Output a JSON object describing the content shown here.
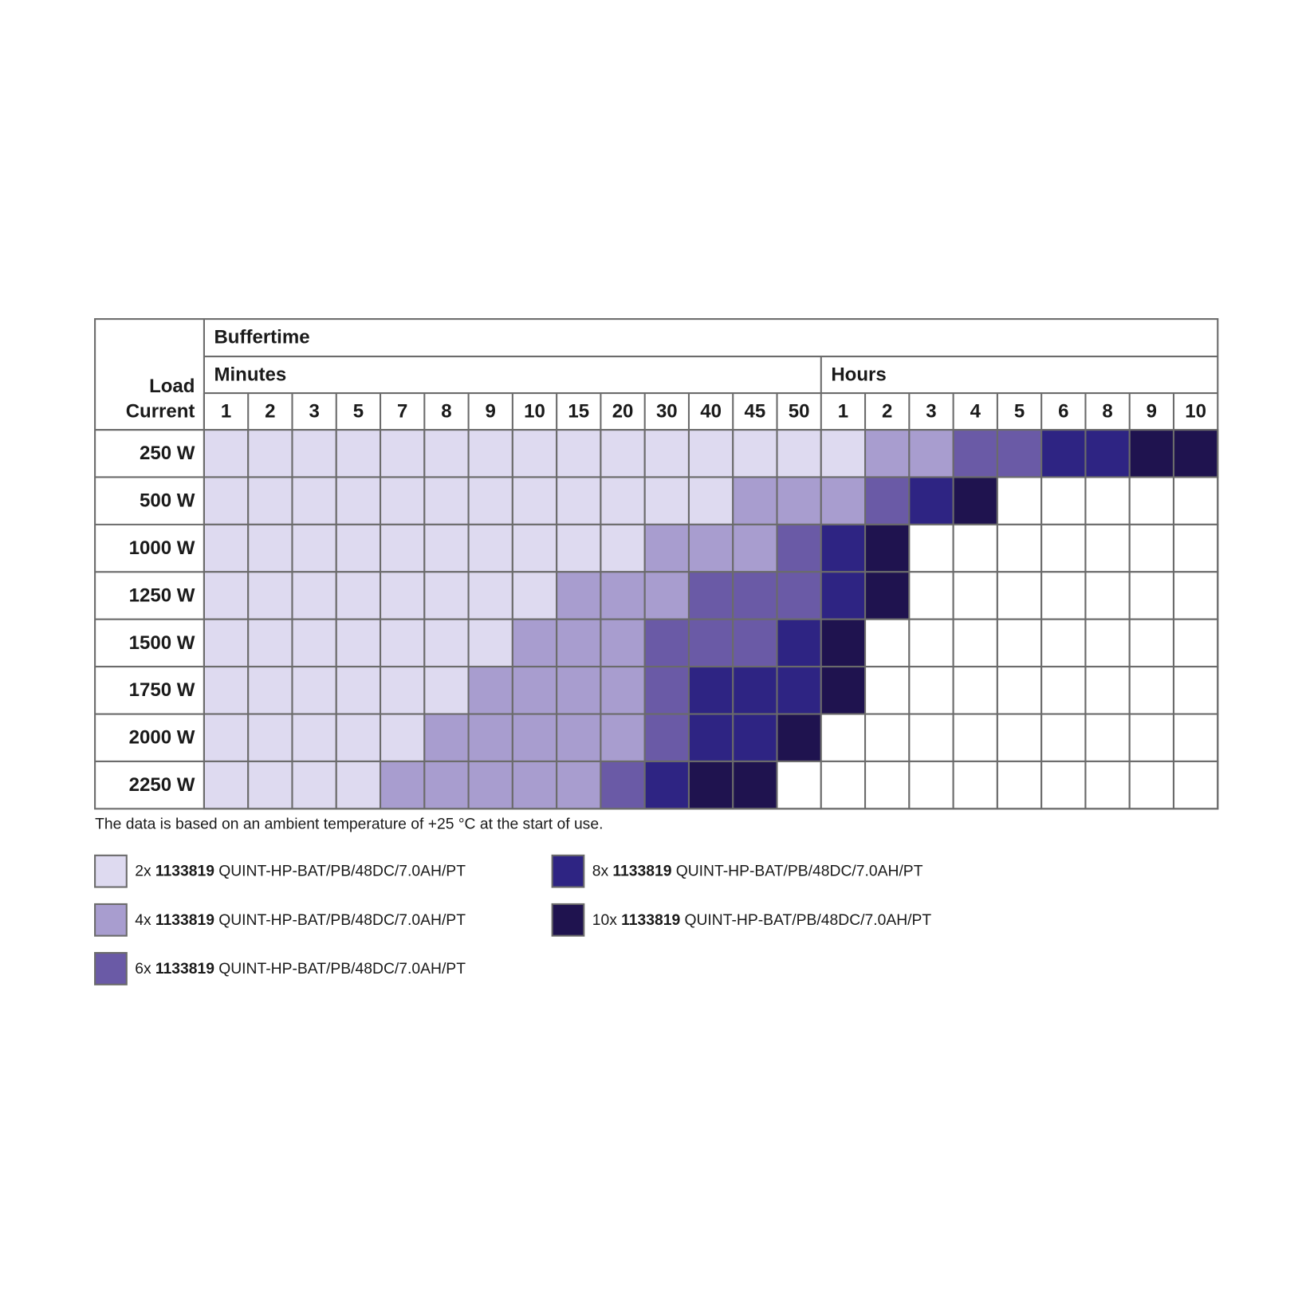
{
  "table": {
    "title": "Buffertime",
    "row_header": [
      "Load",
      "Current"
    ],
    "groups": [
      {
        "label": "Minutes",
        "columns": [
          1,
          2,
          3,
          5,
          7,
          8,
          9,
          10,
          15,
          20,
          30,
          40,
          45,
          50
        ]
      },
      {
        "label": "Hours",
        "columns": [
          1,
          2,
          3,
          4,
          5,
          6,
          8,
          9,
          10
        ]
      }
    ],
    "rows": [
      {
        "label": "250 W",
        "cells": [
          2,
          2,
          2,
          2,
          2,
          2,
          2,
          2,
          2,
          2,
          2,
          2,
          2,
          2,
          2,
          4,
          4,
          6,
          6,
          8,
          8,
          10,
          10
        ]
      },
      {
        "label": "500 W",
        "cells": [
          2,
          2,
          2,
          2,
          2,
          2,
          2,
          2,
          2,
          2,
          2,
          2,
          4,
          4,
          4,
          6,
          8,
          10,
          null,
          null,
          null,
          null,
          null
        ]
      },
      {
        "label": "1000 W",
        "cells": [
          2,
          2,
          2,
          2,
          2,
          2,
          2,
          2,
          2,
          2,
          4,
          4,
          4,
          6,
          8,
          10,
          null,
          null,
          null,
          null,
          null,
          null,
          null
        ]
      },
      {
        "label": "1250 W",
        "cells": [
          2,
          2,
          2,
          2,
          2,
          2,
          2,
          2,
          4,
          4,
          4,
          6,
          6,
          6,
          8,
          10,
          null,
          null,
          null,
          null,
          null,
          null,
          null
        ]
      },
      {
        "label": "1500 W",
        "cells": [
          2,
          2,
          2,
          2,
          2,
          2,
          2,
          4,
          4,
          4,
          6,
          6,
          6,
          8,
          10,
          null,
          null,
          null,
          null,
          null,
          null,
          null,
          null
        ]
      },
      {
        "label": "1750 W",
        "cells": [
          2,
          2,
          2,
          2,
          2,
          2,
          4,
          4,
          4,
          4,
          6,
          8,
          8,
          8,
          10,
          null,
          null,
          null,
          null,
          null,
          null,
          null,
          null
        ]
      },
      {
        "label": "2000 W",
        "cells": [
          2,
          2,
          2,
          2,
          2,
          4,
          4,
          4,
          4,
          4,
          6,
          8,
          8,
          10,
          null,
          null,
          null,
          null,
          null,
          null,
          null,
          null,
          null
        ]
      },
      {
        "label": "2250 W",
        "cells": [
          2,
          2,
          2,
          2,
          4,
          4,
          4,
          4,
          4,
          6,
          8,
          10,
          10,
          null,
          null,
          null,
          null,
          null,
          null,
          null,
          null,
          null,
          null
        ]
      }
    ],
    "note": "The data is based on an ambient temperature of +25 °C at the start of use.",
    "legend": [
      {
        "count": {
          "value": 2,
          "label": "2x"
        },
        "part": "1133819",
        "name": "QUINT-HP-BAT/PB/48DC/7.0AH/PT",
        "color": "#dedaf0"
      },
      {
        "count": {
          "value": 4,
          "label": "4x"
        },
        "part": "1133819",
        "name": "QUINT-HP-BAT/PB/48DC/7.0AH/PT",
        "color": "#a89dcf"
      },
      {
        "count": {
          "value": 6,
          "label": "6x"
        },
        "part": "1133819",
        "name": "QUINT-HP-BAT/PB/48DC/7.0AH/PT",
        "color": "#6a5aa6"
      },
      {
        "count": {
          "value": 8,
          "label": "8x"
        },
        "part": "1133819",
        "name": "QUINT-HP-BAT/PB/48DC/7.0AH/PT",
        "color": "#2e2483"
      },
      {
        "count": {
          "value": 10,
          "label": "10x"
        },
        "part": "1133819",
        "name": "QUINT-HP-BAT/PB/48DC/7.0AH/PT",
        "color": "#1f134f"
      }
    ]
  }
}
